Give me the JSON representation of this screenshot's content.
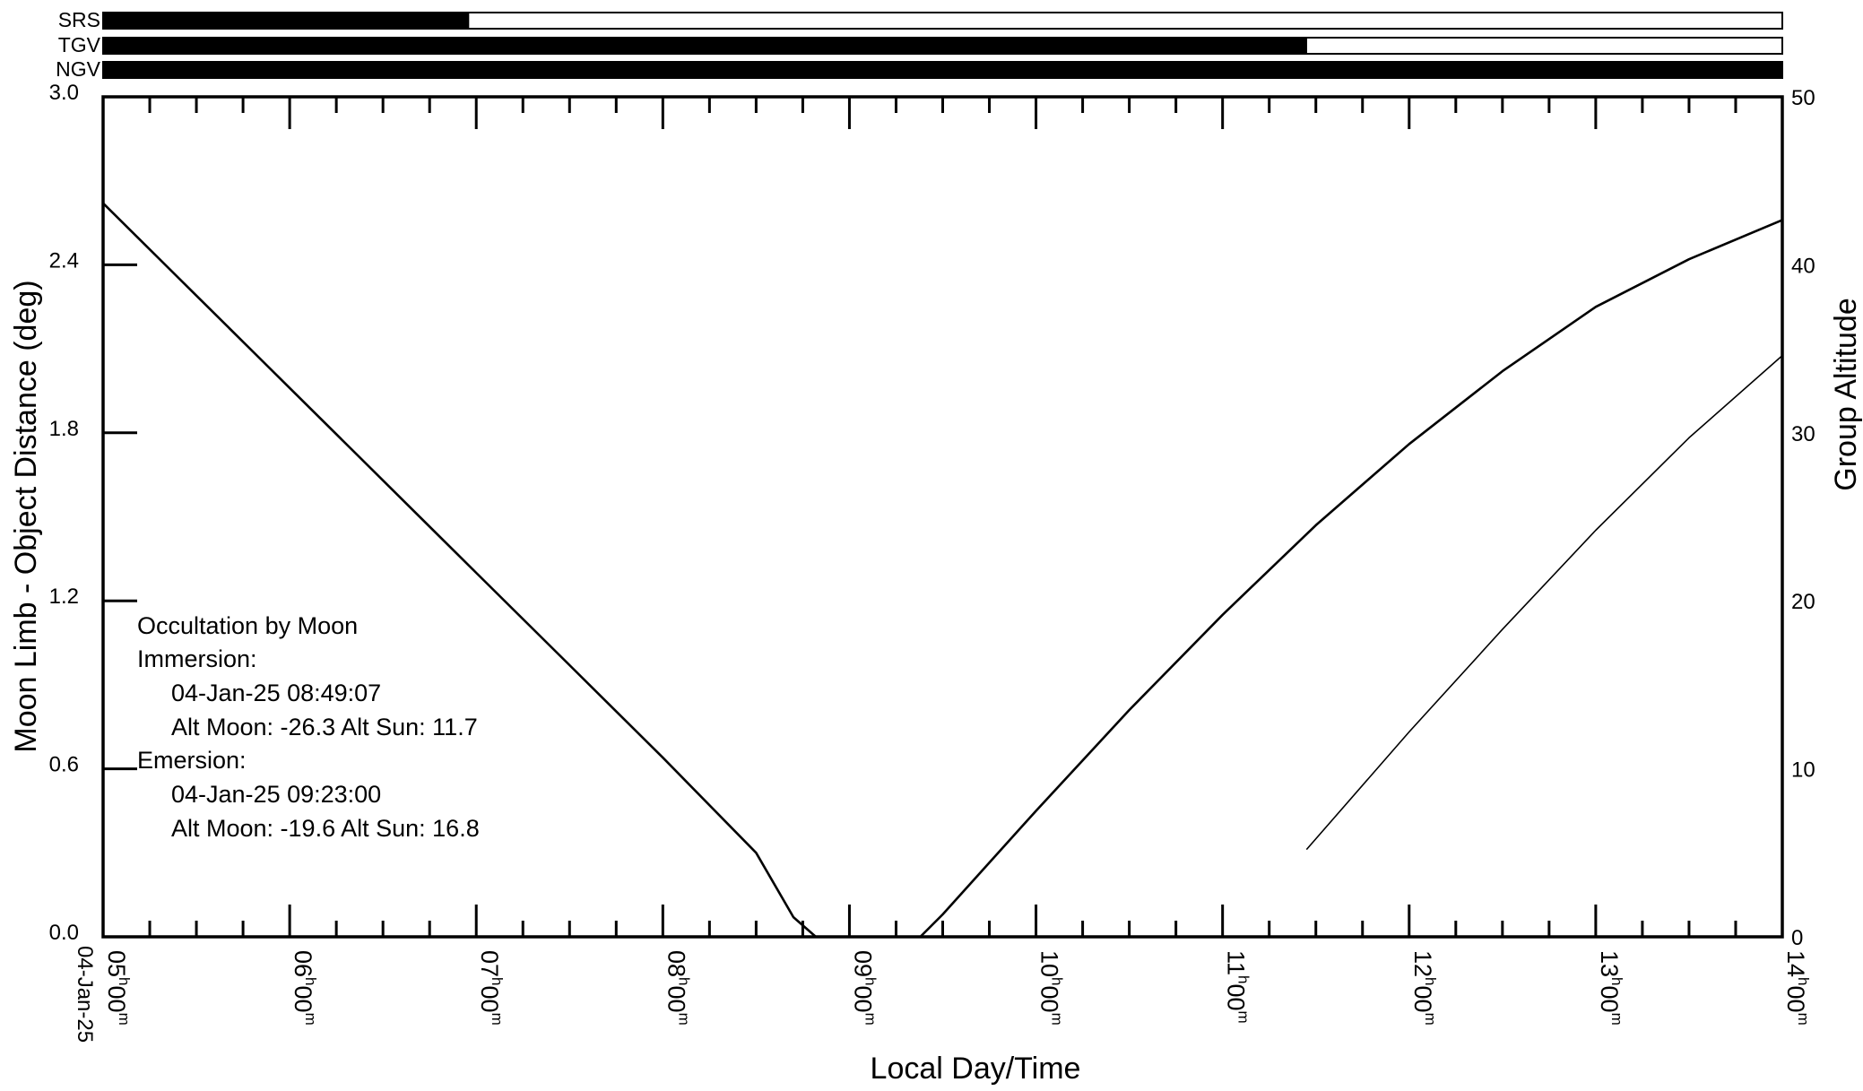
{
  "chart_data": {
    "type": "line",
    "date_label": "04-Jan-25",
    "xlabel": "Local Day/Time",
    "ylabel_left": "Moon Limb - Object Distance (deg)",
    "ylabel_right": "Group Altitude",
    "x_range_hours": [
      5,
      14
    ],
    "ylim_left": [
      0,
      3.0
    ],
    "ylim_right": [
      0,
      50
    ],
    "left_ticks": [
      "3.0",
      "2.4",
      "1.8",
      "1.2",
      "0.6",
      "0.0"
    ],
    "left_tick_values": [
      3.0,
      2.4,
      1.8,
      1.2,
      0.6,
      0.0
    ],
    "right_ticks": [
      "50",
      "40",
      "30",
      "20",
      "10",
      "0"
    ],
    "right_tick_values": [
      50,
      40,
      30,
      20,
      10,
      0
    ],
    "time_ticks": [
      {
        "hour": 5,
        "h": "05",
        "m": "00"
      },
      {
        "hour": 6,
        "h": "06",
        "m": "00"
      },
      {
        "hour": 7,
        "h": "07",
        "m": "00"
      },
      {
        "hour": 8,
        "h": "08",
        "m": "00"
      },
      {
        "hour": 9,
        "h": "09",
        "m": "00"
      },
      {
        "hour": 10,
        "h": "10",
        "m": "00"
      },
      {
        "hour": 11,
        "h": "11",
        "m": "00"
      },
      {
        "hour": 12,
        "h": "12",
        "m": "00"
      },
      {
        "hour": 13,
        "h": "13",
        "m": "00"
      },
      {
        "hour": 14,
        "h": "14",
        "m": "00"
      }
    ],
    "visibility_bars": [
      {
        "name": "SRS",
        "filled_fraction": 0.218
      },
      {
        "name": "TGV",
        "filled_fraction": 0.717
      },
      {
        "name": "NGV",
        "filled_fraction": 1.0
      }
    ],
    "series": [
      {
        "id": "distance",
        "axis": "left",
        "x": [
          5.0,
          5.5,
          6.0,
          6.5,
          7.0,
          7.5,
          8.0,
          8.5,
          8.7,
          8.82,
          9.0,
          9.2,
          9.38,
          9.5,
          10.0,
          10.5,
          11.0,
          11.5,
          12.0,
          12.5,
          13.0,
          13.5,
          14.0
        ],
        "y": [
          2.62,
          2.29,
          1.96,
          1.63,
          1.3,
          0.97,
          0.64,
          0.3,
          0.07,
          0.0,
          0.0,
          0.0,
          0.0,
          0.08,
          0.45,
          0.81,
          1.15,
          1.47,
          1.76,
          2.02,
          2.25,
          2.42,
          2.56
        ]
      },
      {
        "id": "altitude",
        "axis": "right",
        "x": [
          11.45,
          12.0,
          12.5,
          13.0,
          13.5,
          14.0
        ],
        "y": [
          5.2,
          12.2,
          18.3,
          24.2,
          29.7,
          34.6
        ]
      }
    ],
    "annotation": {
      "title": "Occultation by Moon",
      "immersion_label": "Immersion:",
      "immersion_time": "04-Jan-25  08:49:07",
      "immersion_alt": "Alt Moon: -26.3  Alt Sun:  11.7",
      "emersion_label": "Emersion:",
      "emersion_time": "04-Jan-25  09:23:00",
      "emersion_alt": "Alt Moon: -19.6  Alt Sun:  16.8"
    }
  }
}
